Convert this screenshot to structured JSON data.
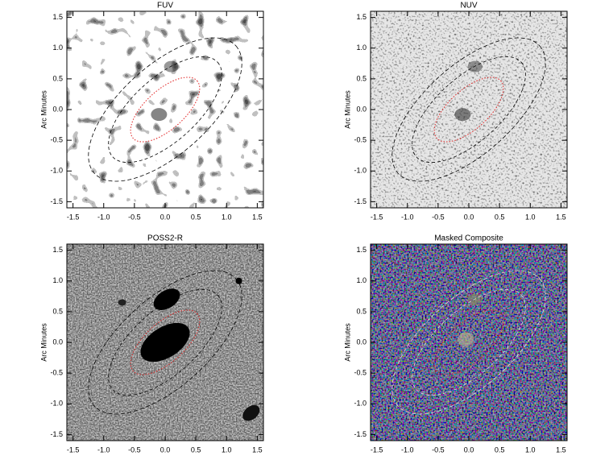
{
  "chart_data": [
    {
      "type": "image",
      "title": "FUV",
      "ylabel": "Arc Minutes",
      "xlim": [
        -1.6,
        1.6
      ],
      "ylim": [
        -1.6,
        1.6
      ],
      "xticks": [
        -1.5,
        {
          "value": -1,
          "label": "-1.0"
        },
        -0.5,
        {
          "value": 0,
          "label": "0.0"
        },
        0.5,
        {
          "value": 1,
          "label": "1.0"
        },
        1.5
      ],
      "yticks": [
        -1.5,
        {
          "value": -1,
          "label": "-1.0"
        },
        -0.5,
        {
          "value": 0,
          "label": "0.0"
        },
        0.5,
        {
          "value": 1,
          "label": "1.0"
        },
        1.5
      ]
    },
    {
      "type": "image",
      "title": "NUV",
      "ylabel": "Arc Minutes",
      "xlim": [
        -1.6,
        1.6
      ],
      "ylim": [
        -1.6,
        1.6
      ],
      "xticks": [
        -1.5,
        {
          "value": -1,
          "label": "-1.0"
        },
        -0.5,
        {
          "value": 0,
          "label": "0.0"
        },
        0.5,
        {
          "value": 1,
          "label": "1.0"
        },
        1.5
      ],
      "yticks": [
        -1.5,
        {
          "value": -1,
          "label": "-1.0"
        },
        -0.5,
        {
          "value": 0,
          "label": "0.0"
        },
        0.5,
        {
          "value": 1,
          "label": "1.0"
        },
        1.5
      ]
    },
    {
      "type": "image",
      "title": "POSS2-R",
      "ylabel": "Arc Minutes",
      "xlim": [
        -1.6,
        1.6
      ],
      "ylim": [
        -1.6,
        1.6
      ],
      "xticks": [
        -1.5,
        {
          "value": -1,
          "label": "-1.0"
        },
        -0.5,
        {
          "value": 0,
          "label": "0.0"
        },
        0.5,
        {
          "value": 1,
          "label": "1.0"
        },
        1.5
      ],
      "yticks": [
        -1.5,
        {
          "value": -1,
          "label": "-1.0"
        },
        -0.5,
        {
          "value": 0,
          "label": "0.0"
        },
        0.5,
        {
          "value": 1,
          "label": "1.0"
        },
        1.5
      ]
    },
    {
      "type": "image",
      "title": "Masked Composite",
      "ylabel": "Arc Minutes",
      "xlim": [
        -1.6,
        1.6
      ],
      "ylim": [
        -1.6,
        1.6
      ],
      "xticks": [
        -1.5,
        {
          "value": -1,
          "label": "-1.0"
        },
        -0.5,
        {
          "value": 0,
          "label": "0.0"
        },
        0.5,
        {
          "value": 1,
          "label": "1.0"
        },
        1.5
      ],
      "yticks": [
        -1.5,
        {
          "value": -1,
          "label": "-1.0"
        },
        -0.5,
        {
          "value": 0,
          "label": "0.0"
        },
        0.5,
        {
          "value": 1,
          "label": "1.0"
        },
        1.5
      ]
    }
  ]
}
